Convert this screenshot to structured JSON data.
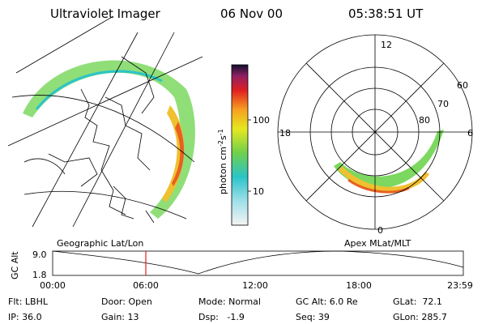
{
  "header": {
    "title": "Ultraviolet Imager",
    "date": "06 Nov 00",
    "time": "05:38:51 UT"
  },
  "colorbar": {
    "unit": {
      "base": "photon cm",
      "exp1": "-2",
      "mid": "s",
      "exp2": "-1"
    },
    "labels": [
      "100",
      "10"
    ]
  },
  "polar_plot": {
    "mlt_labels": [
      "12",
      "18",
      "6",
      "0"
    ],
    "mlat_labels": [
      "60",
      "70",
      "80"
    ]
  },
  "altitude_plot": {
    "left_title": "Geographic Lat/Lon",
    "right_title": "Apex MLat/MLT",
    "axis_label": "GC Alt",
    "y_labels": [
      "9.0",
      "1.8"
    ],
    "time_labels": [
      "00:00",
      "06:00",
      "12:00",
      "18:00",
      "23:59"
    ]
  },
  "info": {
    "rows": [
      [
        "Flt: LBHL",
        "Door: Open",
        "Mode: Normal",
        "GC Alt: 6.0 Re",
        "GLat:  72.1"
      ],
      [
        "IP: 36.0",
        "Gain: 13",
        "Dsp:   -1.9",
        "Seq: 39",
        "GLon: 285.7"
      ]
    ]
  }
}
